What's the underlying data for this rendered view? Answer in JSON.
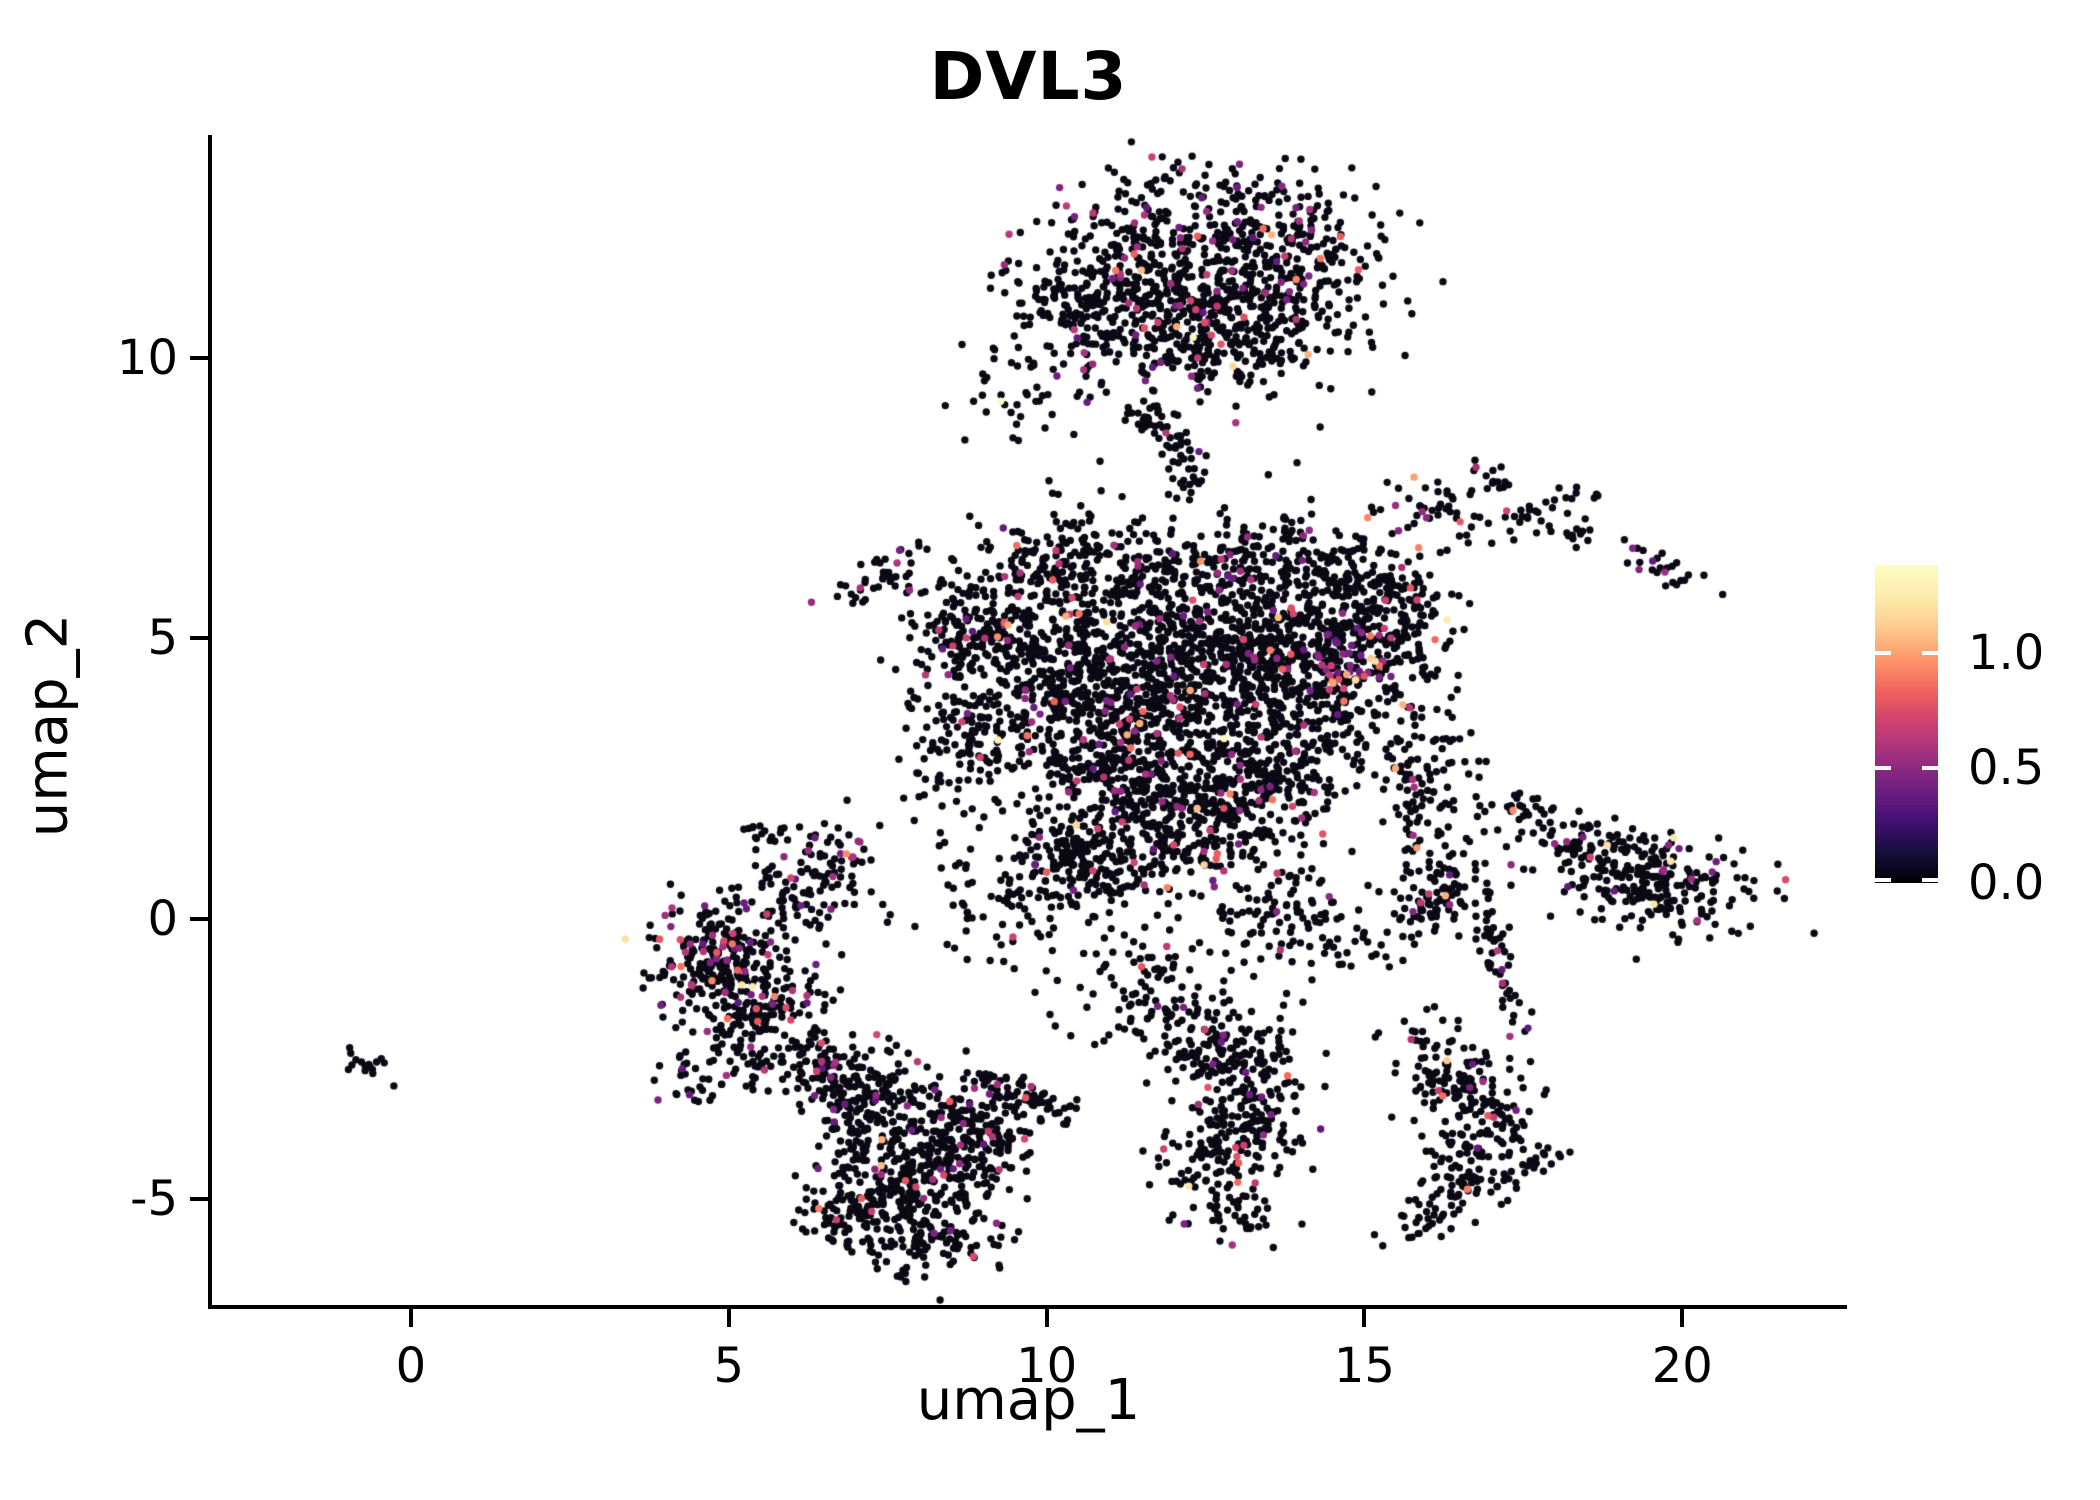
{
  "chart_data": {
    "type": "scatter",
    "title": "DVL3",
    "xlabel": "umap_1",
    "ylabel": "umap_2",
    "x_tick_labels": [
      "0",
      "5",
      "10",
      "15",
      "20"
    ],
    "x_tick_values": [
      0,
      5,
      10,
      15,
      20
    ],
    "y_tick_labels": [
      "10",
      "5",
      "0",
      "-5"
    ],
    "y_tick_values": [
      10,
      5,
      0,
      -5
    ],
    "x_domain": [
      -3.13,
      22.56
    ],
    "y_domain": [
      -6.92,
      13.97
    ],
    "grid": false,
    "legend_position": "right",
    "point_radius_px": 3.7,
    "point_color_zero": "#0a0914",
    "seed": 42,
    "colormap": {
      "name": "magma",
      "stops": [
        "#000004",
        "#180f3e",
        "#451077",
        "#721f81",
        "#9f2f7f",
        "#cd4071",
        "#f1605d",
        "#fd9567",
        "#fec98d",
        "#fdebac",
        "#fcfdbf"
      ]
    },
    "colorbar": {
      "tick_labels": [
        "1.0",
        "0.5",
        "0.0"
      ],
      "tick_values": [
        1.0,
        0.5,
        0.0
      ],
      "vmin": 0.0,
      "vmax": 1.38
    },
    "clusters": [
      {
        "cx": 11.8,
        "cy": 11.5,
        "sx": 0.95,
        "sy": 0.85,
        "rot": 0,
        "n": 420,
        "expr": 0.07
      },
      {
        "cx": 13.8,
        "cy": 11.8,
        "sx": 0.8,
        "sy": 0.75,
        "rot": 0,
        "n": 330,
        "expr": 0.08
      },
      {
        "cx": 12.7,
        "cy": 10.3,
        "sx": 1.1,
        "sy": 0.55,
        "rot": 0,
        "n": 260,
        "expr": 0.07
      },
      {
        "cx": 10.6,
        "cy": 10.9,
        "sx": 0.5,
        "sy": 0.65,
        "rot": 0,
        "n": 120,
        "expr": 0.06
      },
      {
        "cx": 12.3,
        "cy": 13.1,
        "sx": 0.5,
        "sy": 0.4,
        "rot": 0,
        "n": 22,
        "expr": 0.05
      },
      {
        "cx": 9.6,
        "cy": 10.7,
        "sx": 0.4,
        "sy": 0.7,
        "rot": 0,
        "n": 30,
        "expr": 0.05
      },
      {
        "cx": 9.5,
        "cy": 9.3,
        "sx": 0.45,
        "sy": 0.4,
        "rot": 0,
        "n": 26,
        "expr": 0.04
      },
      {
        "cx": 11.65,
        "cy": 8.85,
        "sx": 0.38,
        "sy": 0.13,
        "rot": -35,
        "n": 34,
        "expr": 0.06
      },
      {
        "cx": 12.15,
        "cy": 8.1,
        "sx": 0.14,
        "sy": 0.4,
        "rot": 10,
        "n": 30,
        "expr": 0.06
      },
      {
        "cx": 12.0,
        "cy": 7.6,
        "sx": 1.6,
        "sy": 0.45,
        "rot": 0,
        "n": 26,
        "expr": 0.04
      },
      {
        "cx": 16.1,
        "cy": 7.35,
        "sx": 0.45,
        "sy": 0.3,
        "rot": 0,
        "n": 46,
        "expr": 0.07
      },
      {
        "cx": 17.1,
        "cy": 7.85,
        "sx": 0.38,
        "sy": 0.1,
        "rot": -35,
        "n": 16,
        "expr": 0.0
      },
      {
        "cx": 17.9,
        "cy": 7.15,
        "sx": 0.5,
        "sy": 0.28,
        "rot": 0,
        "n": 40,
        "expr": 0.05
      },
      {
        "cx": 19.5,
        "cy": 6.3,
        "sx": 0.5,
        "sy": 0.12,
        "rot": -22,
        "n": 26,
        "expr": 0.04
      },
      {
        "cx": 9.9,
        "cy": 4.7,
        "sx": 0.85,
        "sy": 0.95,
        "rot": 0,
        "n": 480,
        "expr": 0.055
      },
      {
        "cx": 11.4,
        "cy": 3.4,
        "sx": 0.95,
        "sy": 1.0,
        "rot": 0,
        "n": 600,
        "expr": 0.06
      },
      {
        "cx": 12.6,
        "cy": 5.0,
        "sx": 0.95,
        "sy": 0.85,
        "rot": 0,
        "n": 480,
        "expr": 0.06
      },
      {
        "cx": 14.3,
        "cy": 4.5,
        "sx": 0.85,
        "sy": 0.85,
        "rot": 0,
        "n": 520,
        "expr": 0.07
      },
      {
        "cx": 14.8,
        "cy": 4.6,
        "sx": 0.3,
        "sy": 0.3,
        "rot": 0,
        "n": 40,
        "expr": 0.5
      },
      {
        "cx": 15.4,
        "cy": 5.6,
        "sx": 0.5,
        "sy": 0.5,
        "rot": 0,
        "n": 150,
        "expr": 0.07
      },
      {
        "cx": 12.3,
        "cy": 1.8,
        "sx": 0.85,
        "sy": 0.75,
        "rot": 0,
        "n": 350,
        "expr": 0.06
      },
      {
        "cx": 10.4,
        "cy": 1.0,
        "sx": 0.65,
        "sy": 0.55,
        "rot": 0,
        "n": 200,
        "expr": 0.05
      },
      {
        "cx": 13.5,
        "cy": 2.6,
        "sx": 0.6,
        "sy": 0.6,
        "rot": 0,
        "n": 180,
        "expr": 0.06
      },
      {
        "cx": 8.6,
        "cy": 3.2,
        "sx": 0.45,
        "sy": 0.75,
        "rot": 0,
        "n": 120,
        "expr": 0.05
      },
      {
        "cx": 7.3,
        "cy": 6.1,
        "sx": 0.5,
        "sy": 0.15,
        "rot": 40,
        "n": 40,
        "expr": 0.1
      },
      {
        "cx": 8.7,
        "cy": 5.3,
        "sx": 0.5,
        "sy": 0.35,
        "rot": 0,
        "n": 80,
        "expr": 0.06
      },
      {
        "cx": 10.1,
        "cy": 6.4,
        "sx": 0.6,
        "sy": 0.35,
        "rot": 0,
        "n": 90,
        "expr": 0.05
      },
      {
        "cx": 11.6,
        "cy": 6.3,
        "sx": 0.7,
        "sy": 0.35,
        "rot": 0,
        "n": 80,
        "expr": 0.05
      },
      {
        "cx": 13.3,
        "cy": 6.4,
        "sx": 0.6,
        "sy": 0.4,
        "rot": 0,
        "n": 90,
        "expr": 0.06
      },
      {
        "cx": 14.6,
        "cy": 6.2,
        "sx": 0.4,
        "sy": 0.3,
        "rot": 0,
        "n": 60,
        "expr": 0.06
      },
      {
        "cx": 16.0,
        "cy": 2.3,
        "sx": 0.45,
        "sy": 0.8,
        "rot": 0,
        "n": 130,
        "expr": 0.05
      },
      {
        "cx": 16.1,
        "cy": 0.4,
        "sx": 0.4,
        "sy": 0.35,
        "rot": 0,
        "n": 80,
        "expr": 0.06
      },
      {
        "cx": 14.9,
        "cy": -0.3,
        "sx": 0.5,
        "sy": 0.35,
        "rot": 0,
        "n": 40,
        "expr": 0.04
      },
      {
        "cx": 13.6,
        "cy": 0.2,
        "sx": 0.6,
        "sy": 0.4,
        "rot": 0,
        "n": 70,
        "expr": 0.05
      },
      {
        "cx": 11.5,
        "cy": -0.9,
        "sx": 1.3,
        "sy": 0.5,
        "rot": 0,
        "n": 60,
        "expr": 0.05
      },
      {
        "cx": 9.0,
        "cy": 0.2,
        "sx": 0.8,
        "sy": 0.6,
        "rot": 0,
        "n": 50,
        "expr": 0.04
      },
      {
        "cx": 4.85,
        "cy": -0.75,
        "sx": 0.5,
        "sy": 0.5,
        "rot": 0,
        "n": 240,
        "expr": 0.14
      },
      {
        "cx": 5.6,
        "cy": -1.6,
        "sx": 0.5,
        "sy": 0.4,
        "rot": 0,
        "n": 130,
        "expr": 0.1
      },
      {
        "cx": 5.9,
        "cy": 0.3,
        "sx": 0.45,
        "sy": 0.45,
        "rot": 0,
        "n": 80,
        "expr": 0.08
      },
      {
        "cx": 6.6,
        "cy": 1.1,
        "sx": 0.35,
        "sy": 0.35,
        "rot": 0,
        "n": 55,
        "expr": 0.18
      },
      {
        "cx": 5.4,
        "cy": 1.5,
        "sx": 0.25,
        "sy": 0.15,
        "rot": 0,
        "n": 14,
        "expr": 0.1
      },
      {
        "cx": 5.2,
        "cy": -2.5,
        "sx": 0.5,
        "sy": 0.35,
        "rot": 0,
        "n": 50,
        "expr": 0.06
      },
      {
        "cx": 4.4,
        "cy": -3.0,
        "sx": 0.3,
        "sy": 0.2,
        "rot": 0,
        "n": 16,
        "expr": 0.08
      },
      {
        "cx": 6.3,
        "cy": -2.9,
        "sx": 0.4,
        "sy": 0.3,
        "rot": 0,
        "n": 22,
        "expr": 0.05
      },
      {
        "cx": 7.1,
        "cy": -3.1,
        "sx": 0.5,
        "sy": 0.4,
        "rot": 0,
        "n": 170,
        "expr": 0.06
      },
      {
        "cx": 7.9,
        "cy": -4.2,
        "sx": 0.65,
        "sy": 0.6,
        "rot": 0,
        "n": 250,
        "expr": 0.05
      },
      {
        "cx": 8.9,
        "cy": -3.9,
        "sx": 0.4,
        "sy": 0.45,
        "rot": 0,
        "n": 150,
        "expr": 0.06
      },
      {
        "cx": 7.1,
        "cy": -5.2,
        "sx": 0.45,
        "sy": 0.4,
        "rot": 0,
        "n": 130,
        "expr": 0.05
      },
      {
        "cx": 8.3,
        "cy": -5.5,
        "sx": 0.5,
        "sy": 0.35,
        "rot": 0,
        "n": 110,
        "expr": 0.05
      },
      {
        "cx": 9.7,
        "cy": -3.2,
        "sx": 0.55,
        "sy": 0.15,
        "rot": -20,
        "n": 75,
        "expr": 0.08
      },
      {
        "cx": 6.3,
        "cy": -2.5,
        "sx": 0.3,
        "sy": 0.3,
        "rot": 0,
        "n": 35,
        "expr": 0.05
      },
      {
        "cx": 7.7,
        "cy": -6.1,
        "sx": 0.4,
        "sy": 0.15,
        "rot": 0,
        "n": 12,
        "expr": 0.0
      },
      {
        "cx": 12.75,
        "cy": -2.4,
        "sx": 0.55,
        "sy": 0.45,
        "rot": 0,
        "n": 150,
        "expr": 0.06
      },
      {
        "cx": 13.3,
        "cy": -3.5,
        "sx": 0.45,
        "sy": 0.55,
        "rot": 0,
        "n": 140,
        "expr": 0.05
      },
      {
        "cx": 12.5,
        "cy": -4.3,
        "sx": 0.4,
        "sy": 0.5,
        "rot": 0,
        "n": 90,
        "expr": 0.05
      },
      {
        "cx": 11.6,
        "cy": -1.7,
        "sx": 0.5,
        "sy": 0.25,
        "rot": 20,
        "n": 45,
        "expr": 0.06
      },
      {
        "cx": 13.0,
        "cy": -5.3,
        "sx": 0.3,
        "sy": 0.3,
        "rot": 0,
        "n": 30,
        "expr": 0.05
      },
      {
        "cx": 16.35,
        "cy": -2.8,
        "sx": 0.4,
        "sy": 0.35,
        "rot": 0,
        "n": 85,
        "expr": 0.06
      },
      {
        "cx": 16.95,
        "cy": -3.8,
        "sx": 0.5,
        "sy": 0.5,
        "rot": 0,
        "n": 110,
        "expr": 0.06
      },
      {
        "cx": 16.3,
        "cy": -4.9,
        "sx": 0.3,
        "sy": 0.4,
        "rot": 0,
        "n": 55,
        "expr": 0.05
      },
      {
        "cx": 17.5,
        "cy": -4.5,
        "sx": 0.35,
        "sy": 0.12,
        "rot": 40,
        "n": 25,
        "expr": 0.04
      },
      {
        "cx": 15.8,
        "cy": -5.6,
        "sx": 0.25,
        "sy": 0.2,
        "rot": 0,
        "n": 12,
        "expr": 0.0
      },
      {
        "cx": 15.9,
        "cy": -1.9,
        "sx": 0.3,
        "sy": 0.2,
        "rot": 0,
        "n": 14,
        "expr": 0.05
      },
      {
        "cx": 19.6,
        "cy": 0.7,
        "sx": 0.8,
        "sy": 0.45,
        "rot": -10,
        "n": 240,
        "expr": 0.06
      },
      {
        "cx": 18.5,
        "cy": 1.2,
        "sx": 0.55,
        "sy": 0.3,
        "rot": 0,
        "n": 50,
        "expr": 0.08
      },
      {
        "cx": 17.1,
        "cy": -0.8,
        "sx": 0.13,
        "sy": 0.8,
        "rot": 15,
        "n": 55,
        "expr": 0.06
      },
      {
        "cx": 17.7,
        "cy": 1.9,
        "sx": 0.5,
        "sy": 0.2,
        "rot": -25,
        "n": 30,
        "expr": 0.05
      },
      {
        "cx": -0.85,
        "cy": -2.55,
        "sx": 0.3,
        "sy": 0.09,
        "rot": -35,
        "n": 14,
        "expr": 0.0
      },
      {
        "cx": -0.42,
        "cy": -2.6,
        "sx": 0.05,
        "sy": 0.05,
        "rot": 0,
        "n": 2,
        "expr": 0.0
      }
    ]
  }
}
